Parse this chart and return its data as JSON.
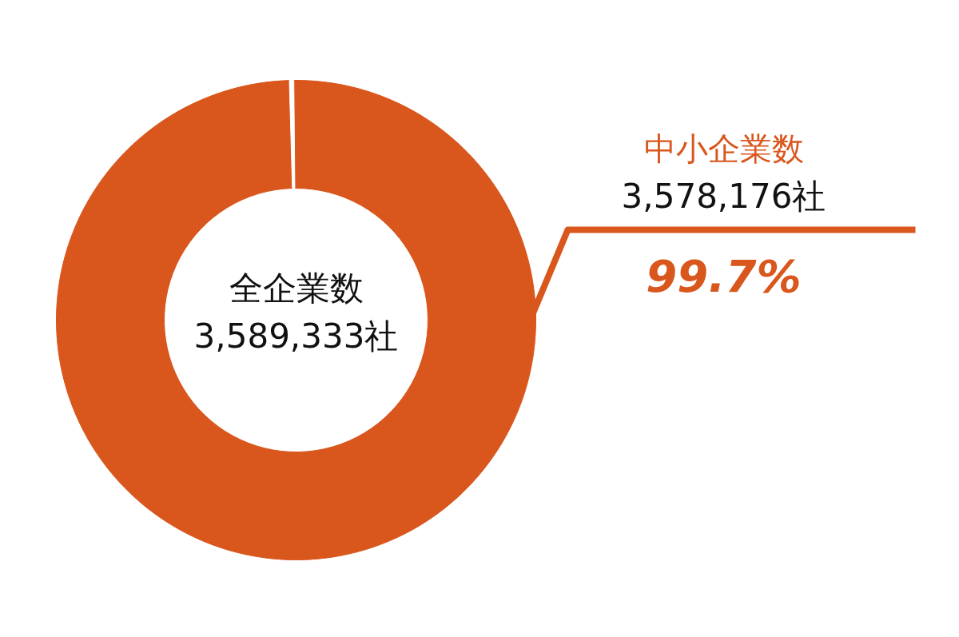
{
  "chart_data": {
    "type": "donut",
    "categories": [
      "中小企業数",
      null
    ],
    "values": [
      99.7,
      0.3
    ],
    "colors": [
      "#d9561c",
      "#ffffff"
    ],
    "value_labels": [
      "99.7%",
      null
    ],
    "annotations": [
      "3,578,176社",
      "全企業数",
      "3,589,333社"
    ]
  }
}
